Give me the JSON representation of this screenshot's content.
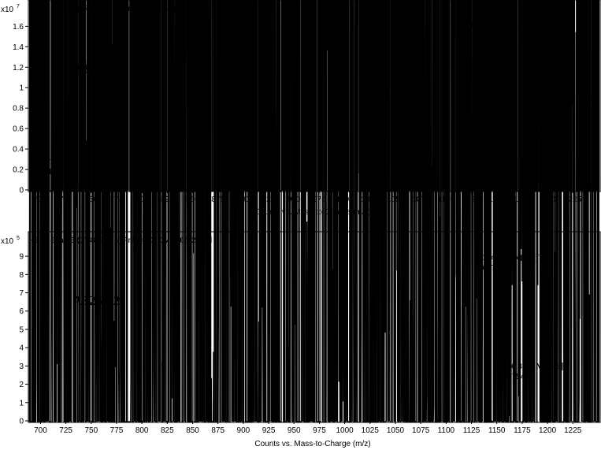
{
  "chart_data": [
    {
      "type": "line",
      "header": "+ESI Scan:3 (17.458 min) Frag=100.0V 3265-1(3).d",
      "multiplier": "x10",
      "exponent": "7",
      "sample_label": "A3265-1",
      "xlabel": "Counts vs. Mass-to-Charge (m/z)",
      "xlim": [
        688,
        1252
      ],
      "ylim": [
        0,
        16800000
      ],
      "x_ticks": [
        700,
        725,
        750,
        775,
        800,
        825,
        850,
        875,
        900,
        925,
        950,
        975,
        1000,
        1025,
        1050,
        1075,
        1100,
        1125,
        1150,
        1175,
        1200,
        1225
      ],
      "y_ticks": [
        0,
        0.2,
        0.4,
        0.6,
        0.8,
        1,
        1.2,
        1.4,
        1.6
      ],
      "y_tick_scale": 10000000,
      "peaks": [
        {
          "mz": 730.3,
          "intensity": 1117906,
          "width": 3.5
        },
        {
          "mz": 841,
          "intensity": 180000,
          "width": 2
        },
        {
          "mz": 860,
          "intensity": 150000,
          "width": 2
        },
        {
          "mz": 868,
          "intensity": 70000,
          "width": 2
        },
        {
          "mz": 1044,
          "intensity": 500000,
          "width": 2
        },
        {
          "mz": 1117,
          "intensity": 420000,
          "width": 2.5
        },
        {
          "mz": 1130.4,
          "intensity": 15544061,
          "width": 2.2
        },
        {
          "mz": 1131.6,
          "intensity": 9000000,
          "width": 1.4
        },
        {
          "mz": 1152.3,
          "intensity": 3086843,
          "width": 2.4
        },
        {
          "mz": 1170,
          "intensity": 50000,
          "width": 2
        }
      ],
      "annotations": [
        {
          "mz_label": "730.3",
          "intensity_label": "1117906",
          "ion": "",
          "charge": "",
          "x": 730.3,
          "y": 1117906
        },
        {
          "mz_label": "1130.4",
          "intensity_label": "15544061",
          "ion": "[M+H]",
          "charge": "+",
          "x": 1130.4,
          "y": 15544061
        },
        {
          "mz_label": "1152.3",
          "intensity_label": "3086843",
          "ion": "[M+Na]",
          "charge": "+",
          "x": 1152.3,
          "y": 3086843
        }
      ]
    },
    {
      "type": "line",
      "header": "+ESI Scan:3 (17.809 min) Frag=100.0V 3265-2(2).d",
      "multiplier": "x10",
      "exponent": "5",
      "sample_label": "A3265-2",
      "xlabel": "Counts vs. Mass-to-Charge (m/z)",
      "xlim": [
        688,
        1252
      ],
      "ylim": [
        0,
        935000
      ],
      "x_ticks": [
        700,
        725,
        750,
        775,
        800,
        825,
        850,
        875,
        900,
        925,
        950,
        975,
        1000,
        1025,
        1050,
        1075,
        1100,
        1125,
        1150,
        1175,
        1200,
        1225
      ],
      "y_ticks": [
        0,
        1,
        2,
        3,
        4,
        5,
        6,
        7,
        8,
        9
      ],
      "y_tick_scale": 100000,
      "peaks": [
        {
          "mz": 841,
          "intensity": 22000,
          "width": 2
        },
        {
          "mz": 1044,
          "intensity": 20000,
          "width": 2
        },
        {
          "mz": 1059,
          "intensity": 62000,
          "width": 2.5
        },
        {
          "mz": 1112,
          "intensity": 25000,
          "width": 2
        },
        {
          "mz": 1129,
          "intensity": 16000,
          "width": 2
        },
        {
          "mz": 1144.4,
          "intensity": 867716,
          "width": 2.2
        },
        {
          "mz": 1145.7,
          "intensity": 480000,
          "width": 1.4
        },
        {
          "mz": 1166.3,
          "intensity": 205754,
          "width": 2.4
        },
        {
          "mz": 1188,
          "intensity": 18000,
          "width": 2
        },
        {
          "mz": 1225,
          "intensity": 8000,
          "width": 2
        }
      ],
      "annotations": [
        {
          "mz_label": "1144.4",
          "intensity_label": "867716",
          "ion": "[M+H]",
          "charge": "+",
          "x": 1144.4,
          "y": 867716
        },
        {
          "mz_label": "1166.3",
          "intensity_label": "205754",
          "ion": "[M+Na]",
          "charge": "+",
          "x": 1166.3,
          "y": 205754
        }
      ]
    }
  ]
}
